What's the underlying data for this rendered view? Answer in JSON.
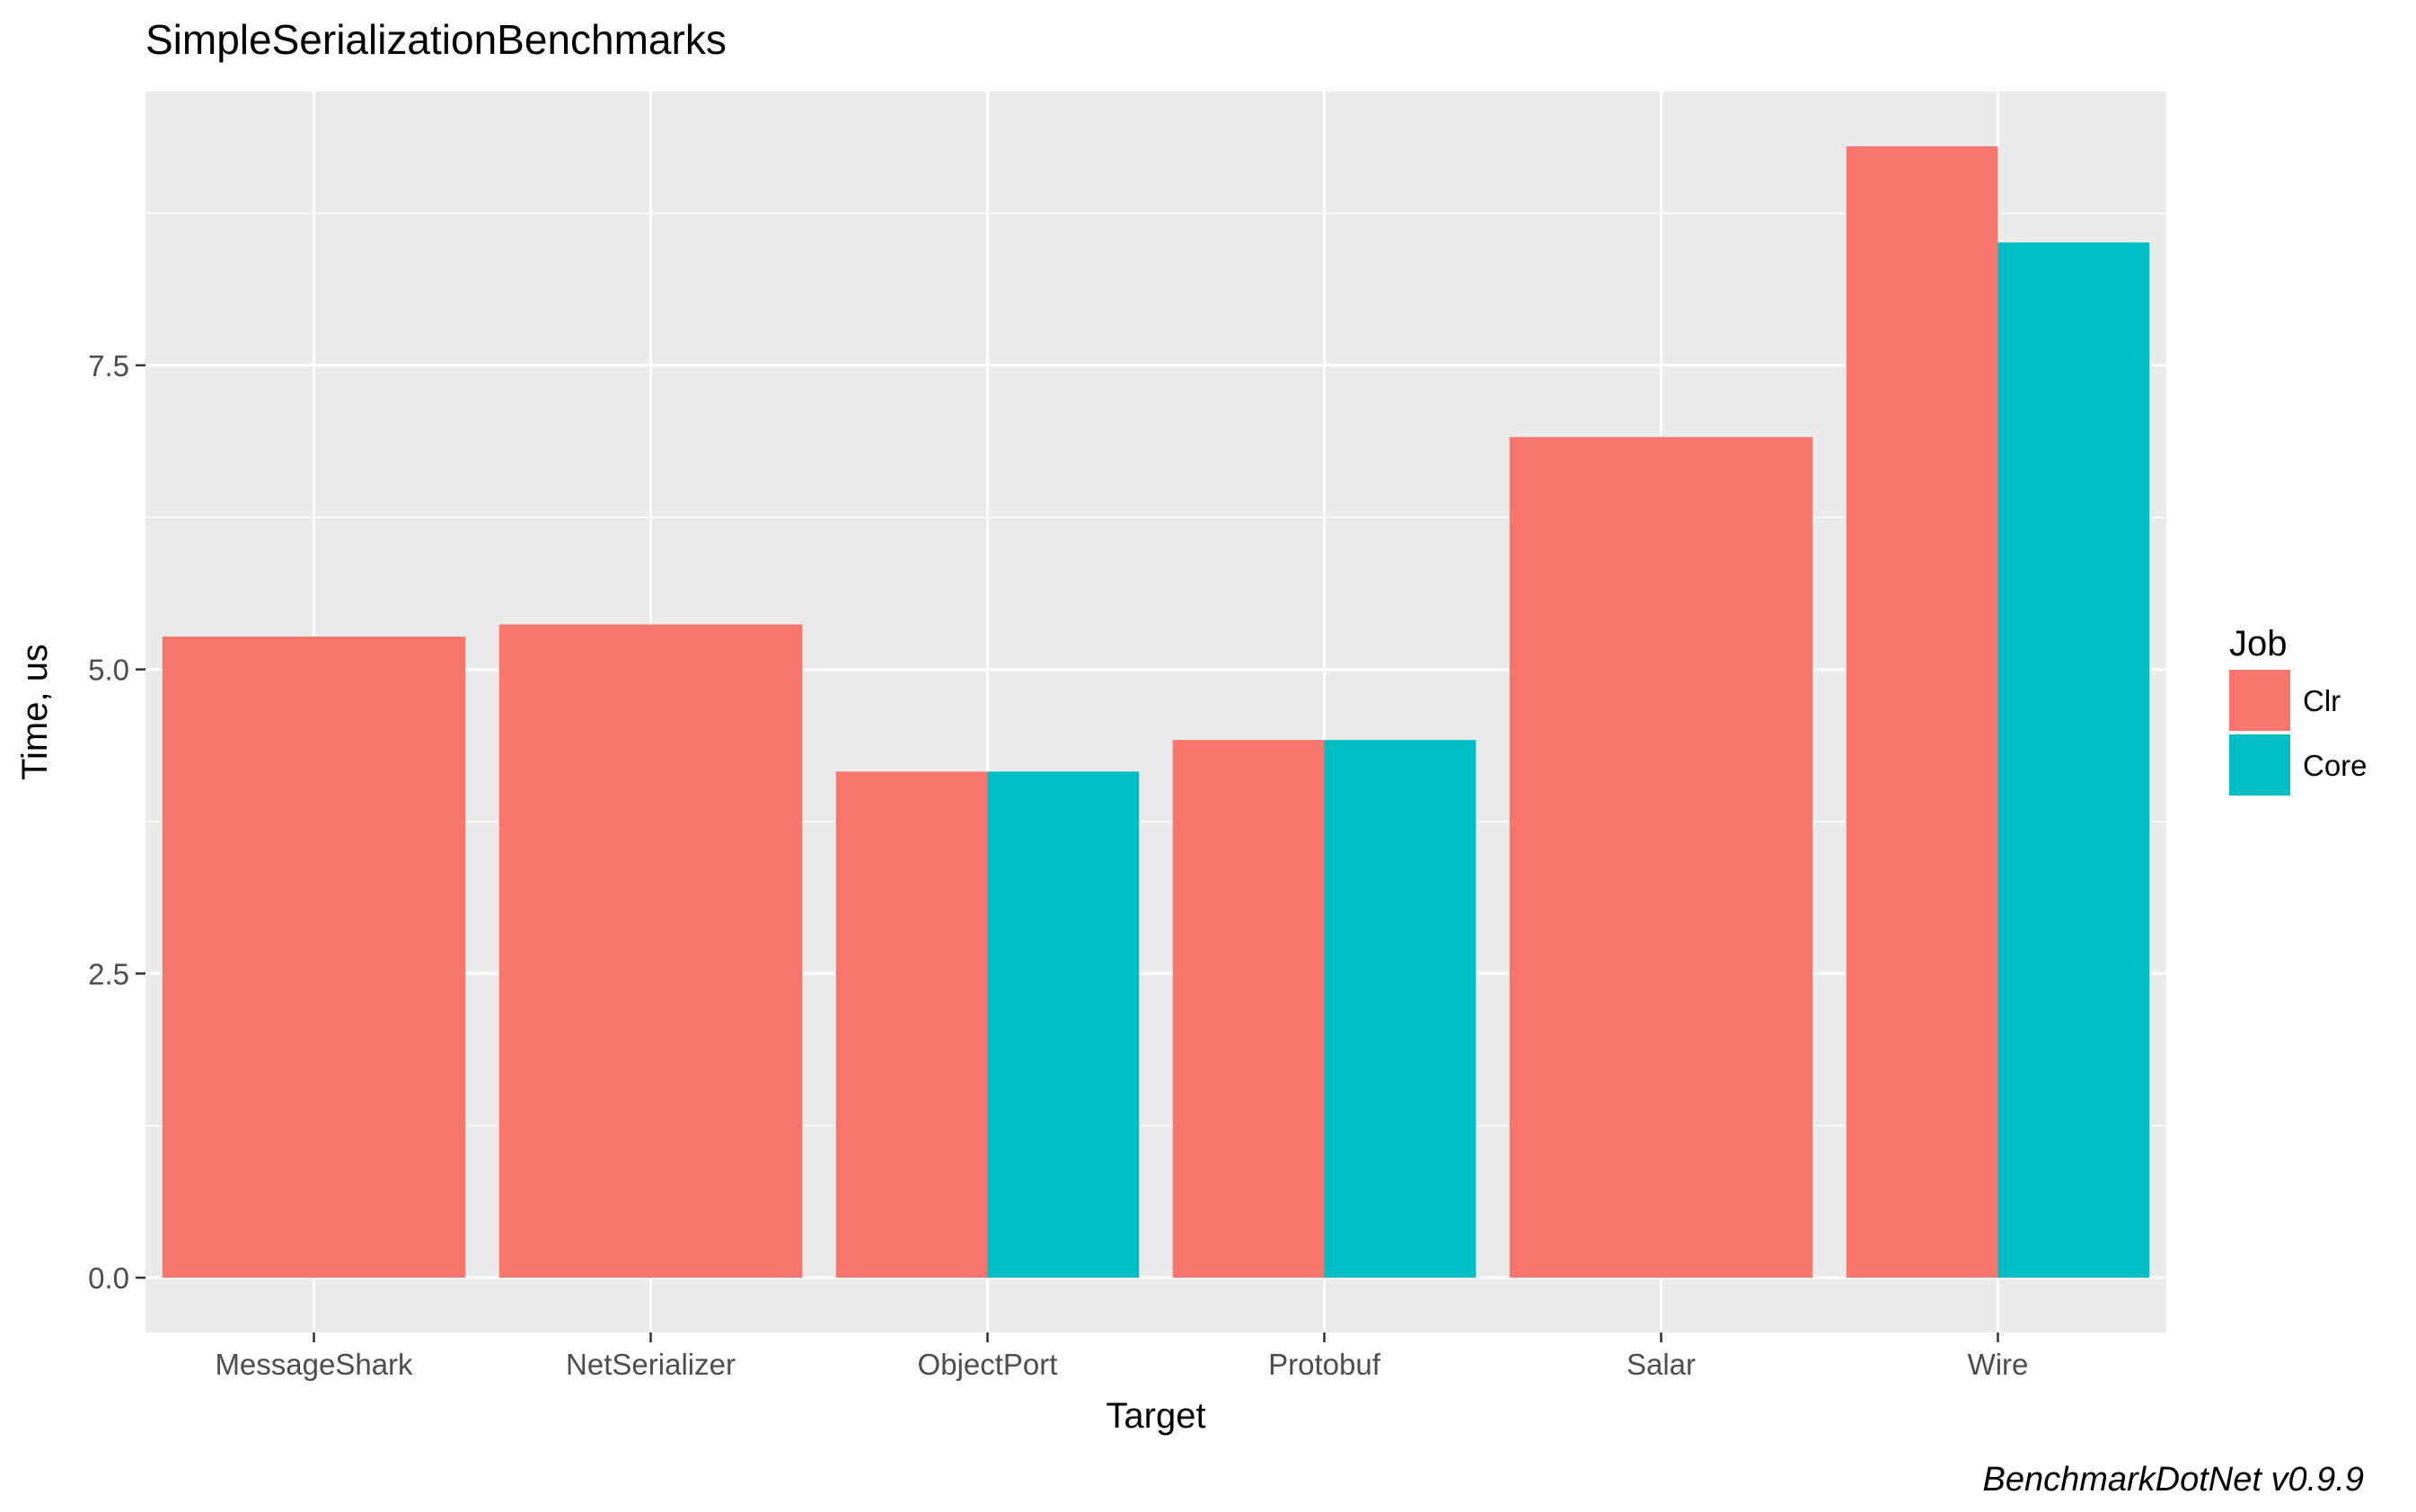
{
  "chart_data": {
    "type": "bar",
    "title": "SimpleSerializationBenchmarks",
    "xlabel": "Target",
    "ylabel": "Time, us",
    "categories": [
      "MessageShark",
      "NetSerializer",
      "ObjectPort",
      "Protobuf",
      "Salar",
      "Wire"
    ],
    "series": [
      {
        "name": "Clr",
        "color": "#F8766D",
        "values": [
          5.27,
          5.37,
          4.16,
          4.42,
          6.91,
          9.3
        ]
      },
      {
        "name": "Core",
        "color": "#00BFC4",
        "values": [
          null,
          null,
          4.16,
          4.42,
          null,
          8.51
        ]
      }
    ],
    "ylim": [
      -0.45,
      9.75
    ],
    "yticks": [
      0.0,
      2.5,
      5.0,
      7.5
    ],
    "ytick_labels": [
      "0.0",
      "2.5",
      "5.0",
      "7.5"
    ],
    "grid": true,
    "legend": {
      "title": "Job",
      "position": "right"
    },
    "caption": "BenchmarkDotNet v0.9.9",
    "panel_background": "#EBEBEB",
    "grid_color": "#FFFFFF"
  }
}
